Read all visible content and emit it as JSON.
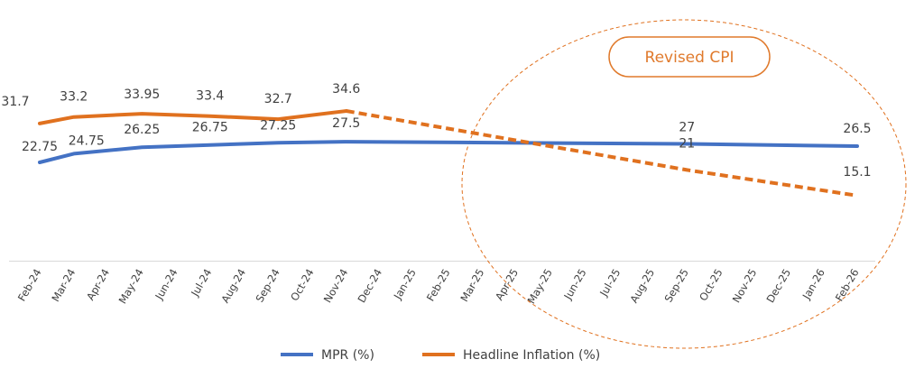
{
  "chart_data": {
    "type": "line",
    "title": "",
    "xlabel": "",
    "ylabel": "",
    "ylim": [
      0,
      40
    ],
    "grid": false,
    "legend": "bottom",
    "categories": [
      "Feb-24",
      "Mar-24",
      "Apr-24",
      "May-24",
      "Jun-24",
      "Jul-24",
      "Aug-24",
      "Sep-24",
      "Oct-24",
      "Nov-24",
      "Dec-24",
      "Jan-25",
      "Feb-25",
      "Mar-25",
      "Apr-25",
      "May-25",
      "Jun-25",
      "Jul-25",
      "Aug-25",
      "Sep-25",
      "Oct-25",
      "Nov-25",
      "Dec-25",
      "Jan-26",
      "Feb-26"
    ],
    "series": [
      {
        "name": "MPR (%)",
        "color": "#4472c4",
        "style": "solid",
        "points": [
          {
            "x": "Feb-24",
            "y": 22.75,
            "label": "22.75"
          },
          {
            "x": "Mar-24",
            "y": 24.75,
            "label": "24.75"
          },
          {
            "x": "May-24",
            "y": 26.25,
            "label": "26.25"
          },
          {
            "x": "Jul-24",
            "y": 26.75,
            "label": "26.75"
          },
          {
            "x": "Sep-24",
            "y": 27.25,
            "label": "27.25"
          },
          {
            "x": "Nov-24",
            "y": 27.5,
            "label": "27.5"
          },
          {
            "x": "Sep-25",
            "y": 27,
            "label": "27"
          },
          {
            "x": "Feb-26",
            "y": 26.5,
            "label": "26.5"
          }
        ]
      },
      {
        "name": "Headline Inflation (%)",
        "color": "#e0711f",
        "style": "solid",
        "points": [
          {
            "x": "Feb-24",
            "y": 31.7,
            "label": "31.7"
          },
          {
            "x": "Mar-24",
            "y": 33.2,
            "label": "33.2"
          },
          {
            "x": "May-24",
            "y": 33.95,
            "label": "33.95"
          },
          {
            "x": "Jul-24",
            "y": 33.4,
            "label": "33.4"
          },
          {
            "x": "Sep-24",
            "y": 32.7,
            "label": "32.7"
          },
          {
            "x": "Nov-24",
            "y": 34.6,
            "label": "34.6"
          }
        ]
      },
      {
        "name": "",
        "color": "#e0711f",
        "style": "dashed",
        "points": [
          {
            "x": "Nov-24",
            "y": 34.6
          },
          {
            "x": "Sep-25",
            "y": 21,
            "label": "21"
          },
          {
            "x": "Feb-26",
            "y": 15.1,
            "label": "15.1"
          }
        ]
      }
    ],
    "legend_entries": [
      {
        "name": "MPR (%)",
        "color": "#4472c4"
      },
      {
        "name": "Headline Inflation (%)",
        "color": "#e0711f"
      }
    ],
    "annotation": {
      "text": "Revised CPI",
      "color": "#e07a2c"
    }
  }
}
